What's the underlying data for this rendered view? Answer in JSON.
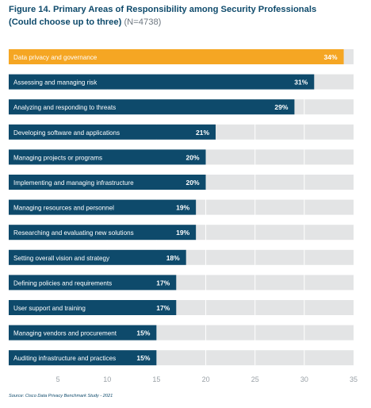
{
  "header": {
    "title_line1": "Figure 14. Primary Areas of Responsibility among Security Professionals",
    "title_line2": "(Could choose up to three)",
    "sample_size": "(N=4738)"
  },
  "colors": {
    "highlight_bar": "#f5a623",
    "bar": "#0e4a6b",
    "track": "#e3e4e5",
    "gridline": "#ffffff",
    "title": "#0e4a6b",
    "tick": "#9aa1a7"
  },
  "chart_data": {
    "type": "bar",
    "orientation": "horizontal",
    "categories": [
      "Data privacy and governance",
      "Assessing and managing risk",
      "Analyzing and responding to threats",
      "Developing software and applications",
      "Managing projects or programs",
      "Implementing and managing infrastructure",
      "Managing resources and personnel",
      "Researching and evaluating new solutions",
      "Setting overall vision and strategy",
      "Defining policies and requirements",
      "User support and training",
      "Managing vendors and procurement",
      "Auditing infrastructure and practices"
    ],
    "values": [
      34,
      31,
      29,
      21,
      20,
      20,
      19,
      19,
      18,
      17,
      17,
      15,
      15
    ],
    "value_labels": [
      "34%",
      "31%",
      "29%",
      "21%",
      "20%",
      "20%",
      "19%",
      "19%",
      "18%",
      "17%",
      "17%",
      "15%",
      "15%"
    ],
    "highlight_index": 0,
    "xlim": [
      0,
      35
    ],
    "xticks": [
      5,
      10,
      15,
      20,
      25,
      30,
      35
    ],
    "xtick_labels": [
      "5",
      "10",
      "15",
      "20",
      "25",
      "30",
      "35"
    ],
    "grid": true,
    "legend": "none"
  },
  "footer": {
    "source": "Source: Cisco Data Privacy Benchmark Study - 2021"
  }
}
